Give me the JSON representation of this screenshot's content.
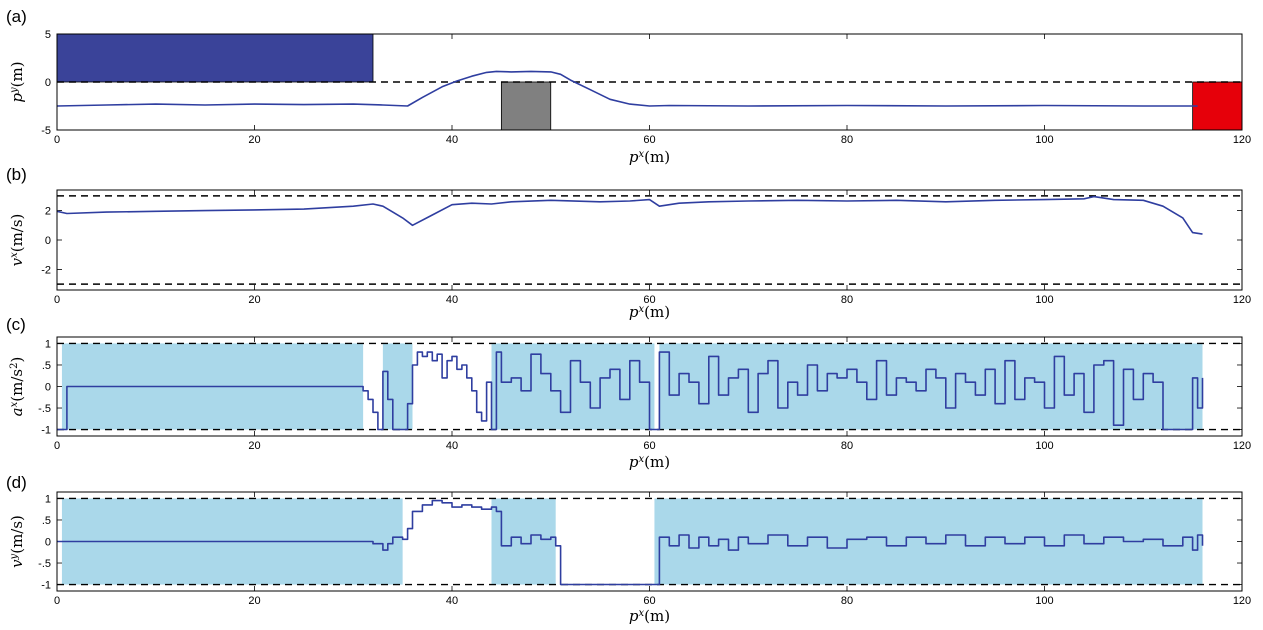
{
  "figure": {
    "panel_letters": [
      "(a)",
      "(b)",
      "(c)",
      "(d)"
    ]
  },
  "colors": {
    "trajectory": "#2f3ea0",
    "start_region": "#3a4399",
    "obstacle": "#808080",
    "goal_region": "#e6000a",
    "feasible_band": "#aad8ea",
    "bound_line": "#000000"
  },
  "chart_data": [
    {
      "id": "a",
      "type": "line",
      "title": "",
      "xlabel": "p^x (m)",
      "ylabel": "p^y (m)",
      "xlim": [
        0,
        120
      ],
      "ylim": [
        -5,
        5
      ],
      "xticks": [
        0,
        20,
        40,
        60,
        80,
        100,
        120
      ],
      "yticks": [
        -5,
        0,
        5
      ],
      "bounds": [
        0
      ],
      "regions": [
        {
          "name": "start",
          "x": [
            0,
            32
          ],
          "y": [
            0,
            5
          ]
        },
        {
          "name": "obstacle",
          "x": [
            45,
            50
          ],
          "y": [
            -5,
            0
          ]
        },
        {
          "name": "goal",
          "x": [
            115,
            120
          ],
          "y": [
            -5,
            0
          ]
        }
      ],
      "series": [
        {
          "x": [
            0,
            5,
            10,
            15,
            20,
            25,
            30,
            33,
            35.5,
            37,
            39,
            40.5,
            42,
            43.5,
            44.5,
            46,
            48,
            50,
            51,
            52,
            54,
            56,
            58,
            60,
            62,
            70,
            80,
            90,
            100,
            110,
            115.5
          ],
          "y": [
            -2.5,
            -2.4,
            -2.3,
            -2.4,
            -2.3,
            -2.35,
            -2.3,
            -2.4,
            -2.5,
            -1.6,
            -0.5,
            0.1,
            0.6,
            1.0,
            1.1,
            1.05,
            1.1,
            1.05,
            0.8,
            0.2,
            -0.8,
            -1.8,
            -2.3,
            -2.5,
            -2.45,
            -2.5,
            -2.45,
            -2.5,
            -2.45,
            -2.5,
            -2.5
          ]
        }
      ]
    },
    {
      "id": "b",
      "type": "line",
      "title": "",
      "xlabel": "p^x (m)",
      "ylabel": "v^x (m/s)",
      "xlim": [
        0,
        120
      ],
      "ylim": [
        -3.4,
        3.4
      ],
      "xticks": [
        0,
        20,
        40,
        60,
        80,
        100,
        120
      ],
      "yticks": [
        -2,
        0,
        2
      ],
      "bounds": [
        3,
        -3
      ],
      "series": [
        {
          "x": [
            0,
            1,
            5,
            10,
            15,
            20,
            25,
            30,
            32,
            33,
            34,
            35,
            36,
            38,
            40,
            42,
            44,
            46,
            50,
            55,
            58,
            60,
            61,
            63,
            66,
            70,
            75,
            80,
            85,
            90,
            95,
            100,
            104,
            105,
            107,
            110,
            112,
            114,
            115,
            116
          ],
          "y": [
            1.95,
            1.8,
            1.9,
            1.95,
            2.0,
            2.05,
            2.1,
            2.3,
            2.45,
            2.3,
            1.9,
            1.5,
            1.0,
            1.7,
            2.4,
            2.5,
            2.45,
            2.6,
            2.7,
            2.6,
            2.65,
            2.75,
            2.3,
            2.5,
            2.6,
            2.65,
            2.7,
            2.65,
            2.7,
            2.6,
            2.7,
            2.75,
            2.8,
            2.95,
            2.75,
            2.7,
            2.3,
            1.5,
            0.5,
            0.4
          ]
        }
      ]
    },
    {
      "id": "c",
      "type": "line",
      "title": "",
      "xlabel": "p^x (m)",
      "ylabel": "a^x (m/s^2)",
      "xlim": [
        0,
        120
      ],
      "ylim": [
        -1.15,
        1.15
      ],
      "xticks": [
        0,
        20,
        40,
        60,
        80,
        100,
        120
      ],
      "yticks": [
        -1,
        -0.5,
        0,
        0.5,
        1
      ],
      "bounds": [
        1,
        -1
      ],
      "band": {
        "x": [
          0.5,
          116
        ],
        "y": [
          -1,
          1
        ],
        "gaps": [
          [
            31,
            33
          ],
          [
            36,
            44
          ],
          [
            60.5,
            61
          ]
        ]
      },
      "series": [
        {
          "x": [
            0,
            1,
            30.5,
            31,
            31.5,
            32,
            32.5,
            33,
            33.5,
            34,
            34.5,
            35,
            35.5,
            36,
            36.5,
            37,
            37.5,
            38,
            38.5,
            39,
            39.5,
            40,
            40.5,
            41,
            41.5,
            42,
            42.5,
            43,
            43.5,
            44,
            44.5,
            45,
            46,
            47,
            48,
            49,
            50,
            51,
            52,
            53,
            54,
            55,
            56,
            57,
            58,
            59,
            60,
            61,
            62,
            63,
            64,
            65,
            66,
            67,
            68,
            69,
            70,
            71,
            72,
            73,
            74,
            75,
            76,
            77,
            78,
            79,
            80,
            81,
            82,
            83,
            84,
            85,
            86,
            87,
            88,
            89,
            90,
            91,
            92,
            93,
            94,
            95,
            96,
            97,
            98,
            99,
            100,
            101,
            102,
            103,
            104,
            105,
            106,
            107,
            108,
            109,
            110,
            111,
            112,
            113,
            114,
            114.5,
            115,
            115.5,
            116
          ],
          "y": [
            -1,
            0,
            0,
            -0.1,
            -0.3,
            -0.6,
            -1,
            0.35,
            -0.3,
            -1,
            -1,
            -1,
            -0.4,
            0.5,
            0.8,
            0.7,
            0.8,
            0.6,
            0.75,
            0.2,
            0.6,
            0.7,
            0.4,
            0.5,
            0.2,
            -0.1,
            -0.6,
            -0.8,
            0.1,
            -1,
            0.8,
            0.1,
            0.2,
            -0.1,
            0.75,
            0.3,
            -0.1,
            -0.6,
            0.6,
            0.1,
            -0.5,
            0.2,
            0.4,
            -0.3,
            0.6,
            0.1,
            -1,
            0.8,
            -0.2,
            0.3,
            0.1,
            -0.4,
            0.7,
            -0.2,
            0.2,
            0.4,
            -0.6,
            0.3,
            0.6,
            -0.5,
            0.1,
            -0.2,
            0.5,
            -0.1,
            0.3,
            0.2,
            0.4,
            0.1,
            -0.3,
            0.6,
            -0.2,
            0.2,
            0.1,
            -0.1,
            0.4,
            0.2,
            -0.5,
            0.3,
            0.1,
            -0.2,
            0.4,
            -0.4,
            0.6,
            -0.3,
            0.2,
            0.1,
            -0.5,
            0.7,
            -0.2,
            0.3,
            -0.6,
            0.5,
            0.6,
            -0.9,
            0.4,
            -0.3,
            0.3,
            0.1,
            -1,
            -1,
            -1,
            -1,
            0.2,
            -0.5,
            0.2
          ]
        }
      ]
    },
    {
      "id": "d",
      "type": "line",
      "title": "",
      "xlabel": "p^x (m)",
      "ylabel": "v^y (m/s)",
      "xlim": [
        0,
        120
      ],
      "ylim": [
        -1.15,
        1.15
      ],
      "xticks": [
        0,
        20,
        40,
        60,
        80,
        100,
        120
      ],
      "yticks": [
        -1,
        -0.5,
        0,
        0.5,
        1
      ],
      "bounds": [
        1,
        -1
      ],
      "band": {
        "x": [
          0.5,
          116
        ],
        "y": [
          -1,
          1
        ],
        "gaps": [
          [
            35,
            44
          ],
          [
            50.5,
            60.5
          ]
        ]
      },
      "series": [
        {
          "x": [
            0,
            10,
            20,
            31,
            32,
            33,
            33.5,
            34,
            35,
            35.5,
            36,
            37,
            38,
            39,
            40,
            41,
            42,
            43,
            44,
            44.5,
            45,
            46,
            47,
            48,
            49,
            50,
            50.5,
            51,
            60,
            60.5,
            61,
            62,
            63,
            64,
            65,
            66,
            67,
            68,
            69,
            70,
            72,
            74,
            76,
            78,
            80,
            82,
            84,
            86,
            88,
            90,
            92,
            94,
            96,
            98,
            100,
            102,
            104,
            106,
            108,
            110,
            112,
            114,
            115,
            115.5,
            116
          ],
          "y": [
            0,
            0,
            0,
            0,
            -0.05,
            -0.2,
            -0.05,
            0.1,
            0.05,
            0.3,
            0.7,
            0.85,
            0.95,
            0.9,
            0.8,
            0.85,
            0.8,
            0.75,
            0.8,
            0.7,
            -0.1,
            0.1,
            -0.05,
            0.15,
            0.05,
            0.1,
            -0.1,
            -1,
            -1,
            -1,
            0.1,
            -0.1,
            0.15,
            -0.15,
            0.1,
            -0.1,
            0.05,
            -0.2,
            0.1,
            -0.05,
            0.15,
            -0.1,
            0.1,
            -0.15,
            0.05,
            0.1,
            -0.1,
            0.1,
            -0.05,
            0.15,
            -0.1,
            0.1,
            -0.05,
            0.1,
            -0.1,
            0.15,
            -0.05,
            0.1,
            0,
            0.05,
            -0.1,
            0.1,
            -0.2,
            0.15,
            -0.1
          ]
        }
      ]
    }
  ]
}
